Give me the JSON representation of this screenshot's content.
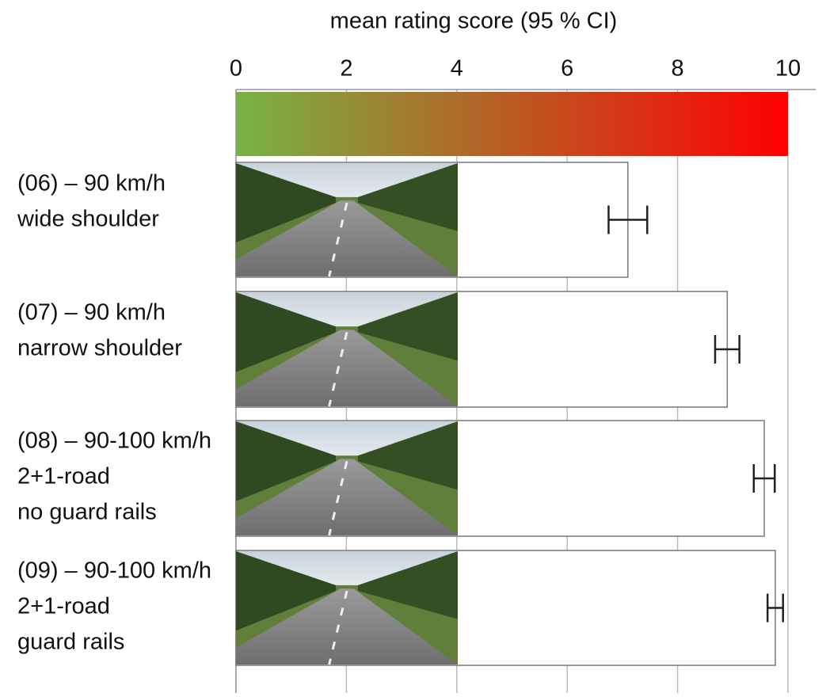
{
  "chart_data": {
    "type": "bar",
    "orientation": "horizontal",
    "title": "mean rating score (95 % CI)",
    "categories": [
      [
        "(06) – 90 km/h",
        "wide shoulder"
      ],
      [
        "(07) – 90 km/h",
        "narrow shoulder"
      ],
      [
        "(08) – 90-100 km/h",
        "2+1-road",
        "no guard rails"
      ],
      [
        "(09) – 90-100 km/h",
        "2+1-road",
        "guard rails"
      ]
    ],
    "values": [
      7.1,
      8.9,
      9.57,
      9.77
    ],
    "errors": [
      0.35,
      0.22,
      0.19,
      0.14
    ],
    "color": "#ffffff",
    "xlim": [
      0,
      10
    ],
    "xticks": [
      0,
      2,
      4,
      6,
      8,
      10
    ],
    "grid": true,
    "colorbar": [
      "#77b347",
      "#ff0000"
    ]
  }
}
